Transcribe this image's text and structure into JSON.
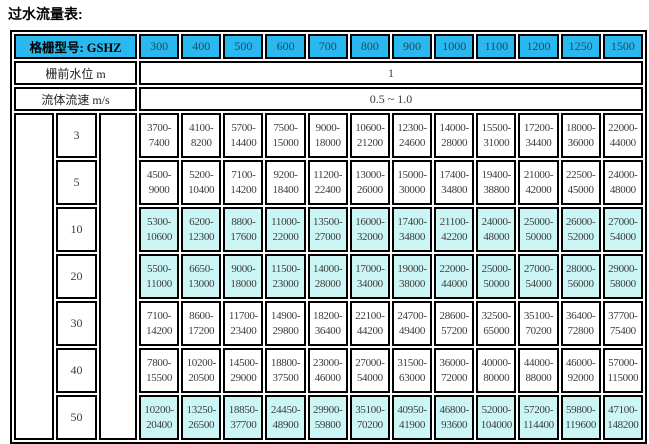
{
  "title": "过水流量表:",
  "colors": {
    "header_bg": "#2bb8ee",
    "highlight_row_bg": "#ccf6f6",
    "border": "#000000",
    "number_text": "#3c3c3c",
    "header_number_text": "#1d4a5f"
  },
  "table": {
    "header": {
      "label": "格栅型号: GSHZ",
      "models": [
        "300",
        "400",
        "500",
        "600",
        "700",
        "800",
        "900",
        "1000",
        "1100",
        "1200",
        "1250",
        "1500"
      ]
    },
    "info_rows": [
      {
        "label": "栅前水位  m",
        "value": "1"
      },
      {
        "label": "流体流速  m/s",
        "value": "0.5 ~ 1.0"
      }
    ],
    "data_rows": [
      {
        "key": "3",
        "highlight": false,
        "ranges": [
          "3700-\n7400",
          "4100-\n8200",
          "5700-\n14400",
          "7500-\n15000",
          "9000-\n18000",
          "10600-\n21200",
          "12300-\n24600",
          "14000-\n28000",
          "15500-\n31000",
          "17200-\n34400",
          "18000-\n36000",
          "22000-\n44000"
        ]
      },
      {
        "key": "5",
        "highlight": false,
        "ranges": [
          "4500-\n9000",
          "5200-\n10400",
          "7100-\n14200",
          "9200-\n18400",
          "11200-\n22400",
          "13000-\n26000",
          "15000-\n30000",
          "17400-\n34800",
          "19400-\n38800",
          "21000-\n42000",
          "22500-\n45000",
          "24000-\n48000"
        ]
      },
      {
        "key": "10",
        "highlight": true,
        "ranges": [
          "5300-\n10600",
          "6200-\n12300",
          "8800-\n17600",
          "11000-\n22000",
          "13500-\n27000",
          "16000-\n32000",
          "17400-\n34800",
          "21100-\n42200",
          "24000-\n48000",
          "25000-\n50000",
          "26000-\n52000",
          "27000-\n54000"
        ]
      },
      {
        "key": "20",
        "highlight": true,
        "ranges": [
          "5500-\n11000",
          "6650-\n13000",
          "9000-\n18000",
          "11500-\n23000",
          "14000-\n28000",
          "17000-\n34000",
          "19000-\n38000",
          "22000-\n44000",
          "25000-\n50000",
          "27000-\n54000",
          "28000-\n56000",
          "29000-\n58000"
        ]
      },
      {
        "key": "30",
        "highlight": false,
        "ranges": [
          "7100-\n14200",
          "8600-\n17200",
          "11700-\n23400",
          "14900-\n29800",
          "18200-\n36400",
          "22100-\n44200",
          "24700-\n49400",
          "28600-\n57200",
          "32500-\n65000",
          "35100-\n70200",
          "36400-\n72800",
          "37700-\n75400"
        ]
      },
      {
        "key": "40",
        "highlight": false,
        "ranges": [
          "7800-\n15500",
          "10200-\n20500",
          "14500-\n29000",
          "18800-\n37500",
          "23000-\n46000",
          "27000-\n54000",
          "31500-\n63000",
          "36000-\n72000",
          "40000-\n80000",
          "44000-\n88000",
          "46000-\n92000",
          "57000-\n115000"
        ]
      },
      {
        "key": "50",
        "highlight": true,
        "ranges": [
          "10200-\n20400",
          "13250-\n26500",
          "18850-\n37700",
          "24450-\n48900",
          "29900-\n59800",
          "35100-\n70200",
          "40950-\n41900",
          "46800-\n93600",
          "52000-\n104000",
          "57200-\n114400",
          "59800-\n119600",
          "47100-\n148200"
        ]
      }
    ]
  }
}
